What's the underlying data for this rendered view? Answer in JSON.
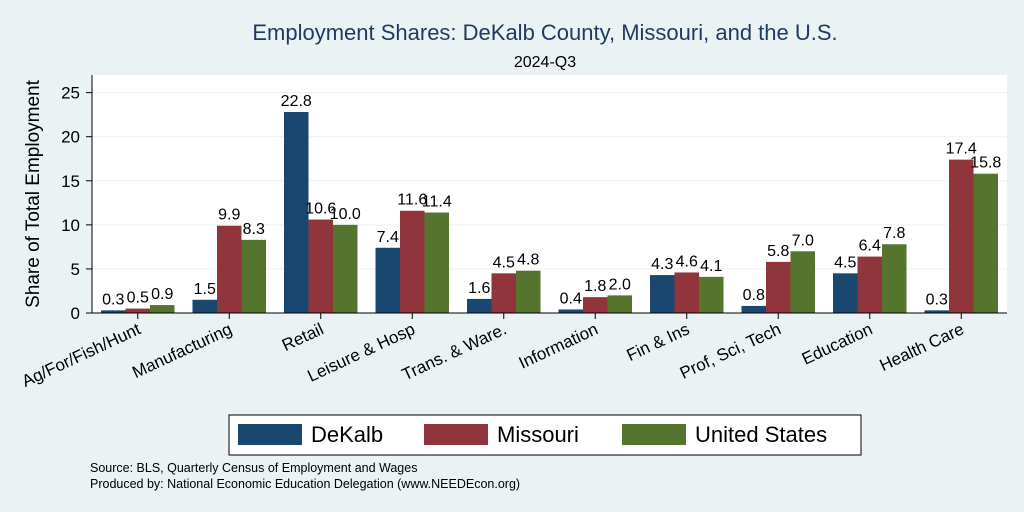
{
  "chart_data": {
    "type": "bar",
    "title": "Employment Shares: DeKalb County, Missouri, and the U.S.",
    "subtitle": "2024-Q3",
    "xlabel": "",
    "ylabel": "Share of Total Employment",
    "ylim": [
      0,
      27
    ],
    "yticks": [
      0,
      5,
      10,
      15,
      20,
      25
    ],
    "grid": true,
    "legend_position": "bottom",
    "categories": [
      "Ag/For/Fish/Hunt",
      "Manufacturing",
      "Retail",
      "Leisure & Hosp",
      "Trans. & Ware.",
      "Information",
      "Fin & Ins",
      "Prof, Sci, Tech",
      "Education",
      "Health Care"
    ],
    "series": [
      {
        "name": "DeKalb",
        "color": "#1a476f",
        "values": [
          0.3,
          1.5,
          22.8,
          7.4,
          1.6,
          0.4,
          4.3,
          0.8,
          4.5,
          0.3
        ],
        "labels": [
          "0.3",
          "1.5",
          "22.8",
          "7.4",
          "1.6",
          "0.4",
          "4.3",
          "0.8",
          "4.5",
          "0.3"
        ]
      },
      {
        "name": "Missouri",
        "color": "#90353b",
        "values": [
          0.5,
          9.9,
          10.6,
          11.6,
          4.5,
          1.8,
          4.6,
          5.8,
          6.4,
          17.4
        ],
        "labels": [
          "0.5",
          "9.9",
          "10.6",
          "11.6",
          "4.5",
          "1.8",
          "4.6",
          "5.8",
          "6.4",
          "17.4"
        ]
      },
      {
        "name": "United States",
        "color": "#55752f",
        "values": [
          0.9,
          8.3,
          10.0,
          11.4,
          4.8,
          2.0,
          4.1,
          7.0,
          7.8,
          15.8
        ],
        "labels": [
          "0.9",
          "8.3",
          "10.0",
          "11.4",
          "4.8",
          "2.0",
          "4.1",
          "7.0",
          "7.8",
          "15.8"
        ]
      }
    ]
  },
  "notes": {
    "source": "Source: BLS, Quarterly Census of Employment and Wages",
    "produced": "Produced by: National Economic Education Delegation (www.NEEDEcon.org)"
  }
}
